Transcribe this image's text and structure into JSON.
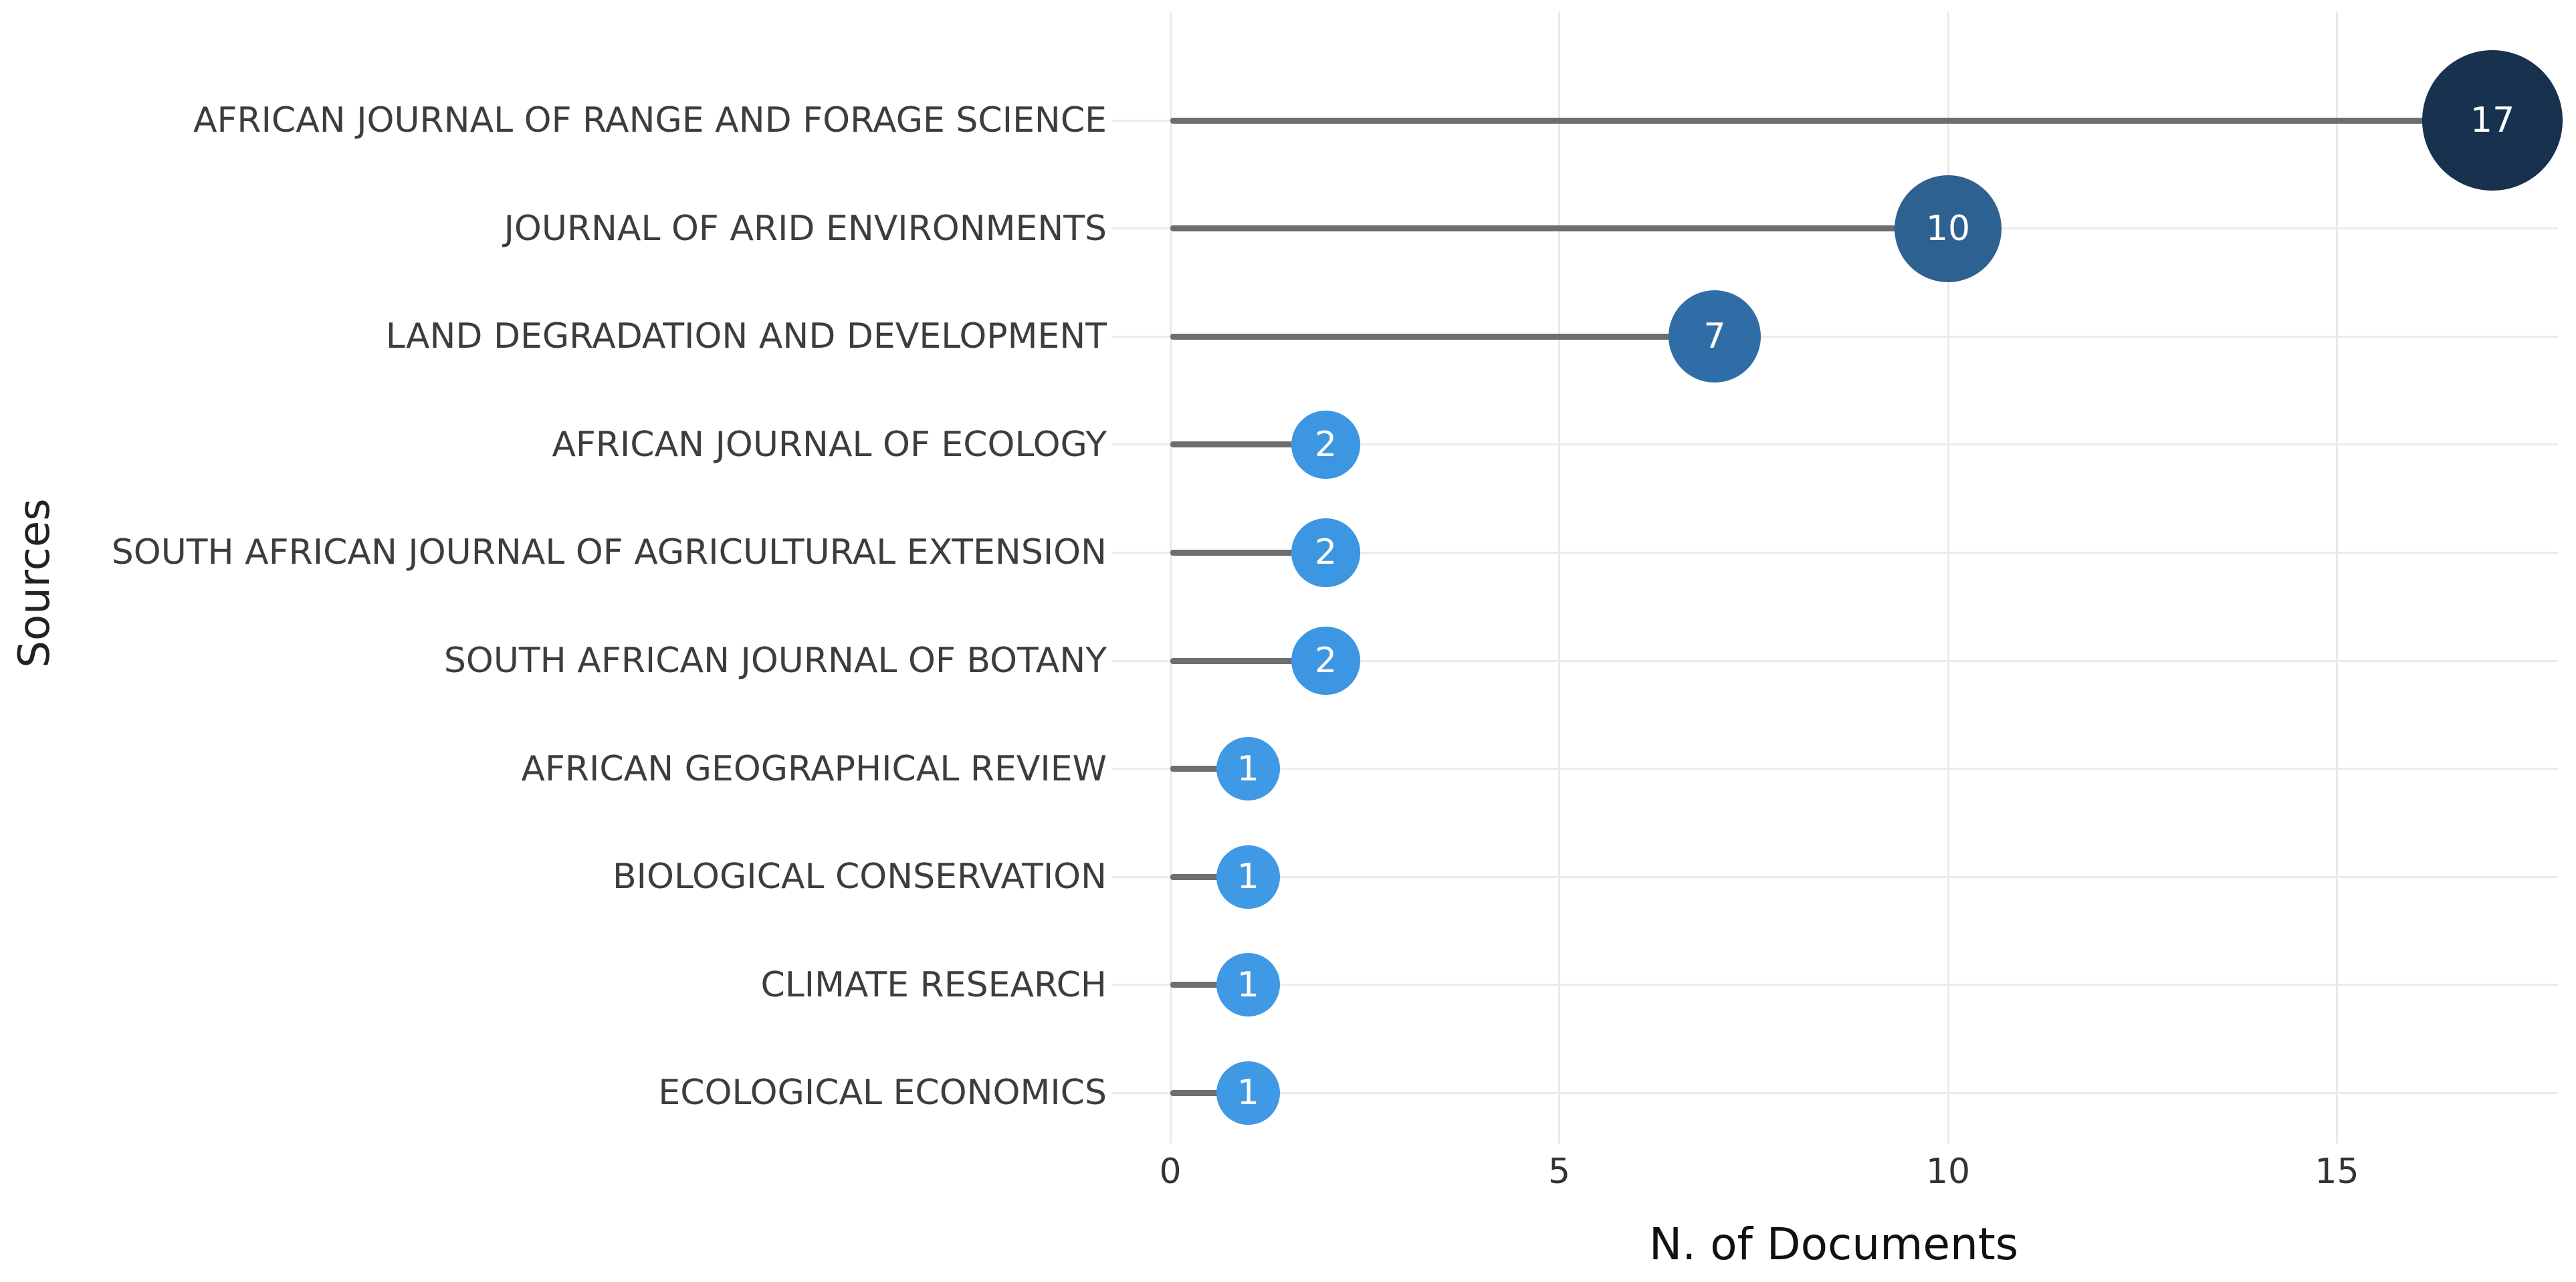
{
  "chart_data": {
    "type": "bar",
    "variant": "lollipop-horizontal",
    "title": "",
    "xlabel": "N. of Documents",
    "ylabel": "Sources",
    "categories": [
      "AFRICAN JOURNAL OF RANGE AND FORAGE SCIENCE",
      "JOURNAL OF ARID ENVIRONMENTS",
      "LAND DEGRADATION AND DEVELOPMENT",
      "AFRICAN JOURNAL OF ECOLOGY",
      "SOUTH AFRICAN JOURNAL OF AGRICULTURAL EXTENSION",
      "SOUTH AFRICAN JOURNAL OF BOTANY",
      "AFRICAN GEOGRAPHICAL REVIEW",
      "BIOLOGICAL CONSERVATION",
      "CLIMATE RESEARCH",
      "ECOLOGICAL ECONOMICS"
    ],
    "values": [
      17,
      10,
      7,
      2,
      2,
      2,
      1,
      1,
      1,
      1
    ],
    "value_labels": [
      "17",
      "10",
      "7",
      "2",
      "2",
      "2",
      "1",
      "1",
      "1",
      "1"
    ],
    "point_colors": [
      "#17314f",
      "#2d6191",
      "#2f6da6",
      "#3d96e1",
      "#3d96e1",
      "#3d96e1",
      "#4099e4",
      "#4099e4",
      "#4099e4",
      "#4099e4"
    ],
    "xlim": [
      0,
      18
    ],
    "xticks": [
      0,
      5,
      10,
      15
    ],
    "xtick_labels": [
      "0",
      "5",
      "10",
      "15"
    ],
    "grid": true,
    "legend": "none",
    "colors": {
      "stem": "#6e6e6e",
      "gridline": "#e9e9e9",
      "category_label": "#3d3d3d",
      "tick_label": "#333333",
      "axis_title": "#111111",
      "bubble_text": "#ffffff",
      "background": "#ffffff"
    }
  }
}
